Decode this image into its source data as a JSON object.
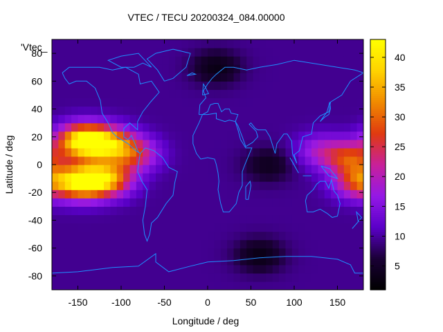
{
  "chart_data": {
    "type": "heatmap",
    "title": "VTEC / TECU 20200324_084.00000",
    "key_label": "'Vtec_",
    "xlabel": "Longitude / deg",
    "ylabel": "Latitude / deg",
    "xlim": [
      -180,
      180
    ],
    "ylim": [
      -90,
      90
    ],
    "xticks": [
      -150,
      -100,
      -50,
      0,
      50,
      100,
      150
    ],
    "yticks": [
      -80,
      -60,
      -40,
      -20,
      0,
      20,
      40,
      60,
      80
    ],
    "colorbar": {
      "range": [
        1,
        43
      ],
      "ticks": [
        5,
        10,
        15,
        20,
        25,
        30,
        35,
        40
      ],
      "palette": [
        "#000000",
        "#1a0035",
        "#5a00c8",
        "#9418e6",
        "#c8209a",
        "#e03a10",
        "#f08a00",
        "#ffd200",
        "#ffff00"
      ]
    },
    "vtec_features": [
      {
        "lon": -145,
        "lat": 17,
        "value": 41
      },
      {
        "lon": -145,
        "lat": -12,
        "value": 40
      },
      {
        "lon": -115,
        "lat": 15,
        "value": 33
      },
      {
        "lon": -115,
        "lat": -10,
        "value": 32
      },
      {
        "lon": -85,
        "lat": 8,
        "value": 24
      },
      {
        "lon": 165,
        "lat": 5,
        "value": 26
      },
      {
        "lon": 175,
        "lat": -12,
        "value": 27
      },
      {
        "lon": 130,
        "lat": 10,
        "value": 18
      },
      {
        "lon": 10,
        "lat": 70,
        "value": 3
      },
      {
        "lon": 60,
        "lat": -65,
        "value": 3
      },
      {
        "lon": 70,
        "lat": 0,
        "value": 4
      }
    ],
    "background_value": 9.5,
    "coastline_color": "#1e90ff"
  }
}
